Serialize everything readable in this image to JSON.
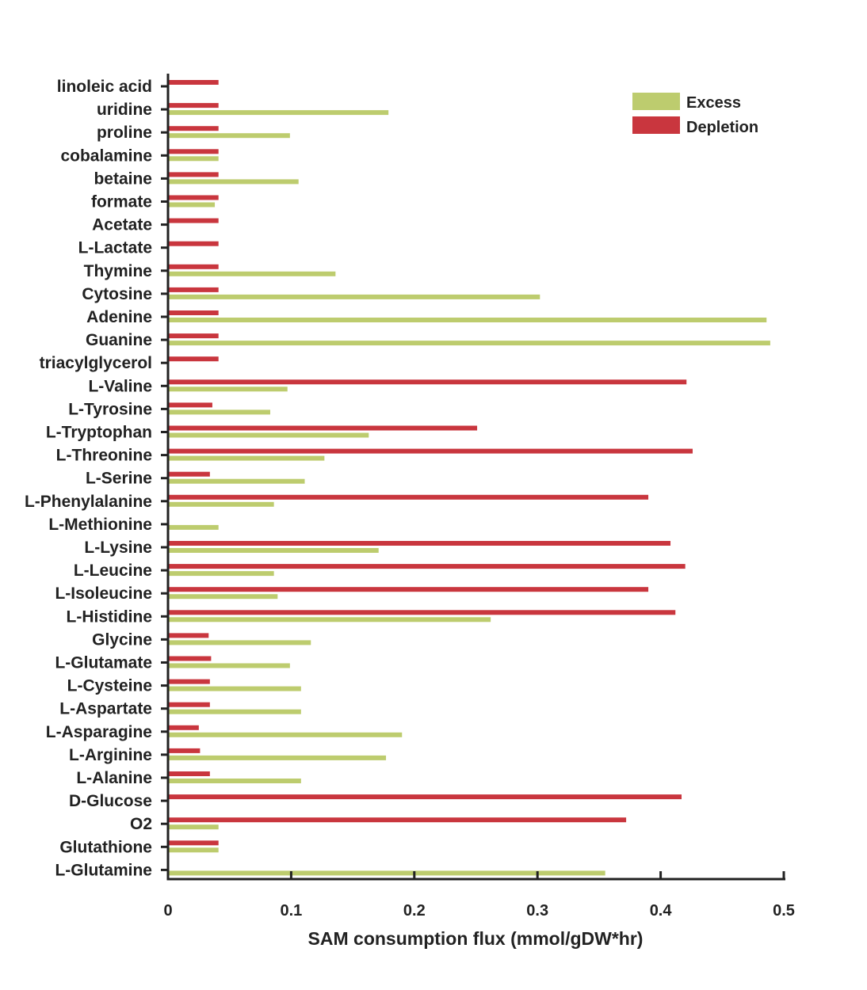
{
  "chart_data": {
    "type": "bar",
    "orientation": "horizontal",
    "title": "",
    "xlabel": "SAM consumption flux (mmol/gDW*hr)",
    "ylabel": "",
    "xlim": [
      0,
      0.5
    ],
    "xticks": [
      "0",
      "0.1",
      "0.2",
      "0.3",
      "0.4",
      "0.5"
    ],
    "xtick_values": [
      0,
      0.1,
      0.2,
      0.3,
      0.4,
      0.5
    ],
    "grid": false,
    "legend_position": "top-right",
    "categories": [
      "linoleic acid",
      "uridine",
      "proline",
      "cobalamine",
      "betaine",
      "formate",
      "Acetate",
      "L-Lactate",
      "Thymine",
      "Cytosine",
      "Adenine",
      "Guanine",
      "triacylglycerol",
      "L-Valine",
      "L-Tyrosine",
      "L-Tryptophan",
      "L-Threonine",
      "L-Serine",
      "L-Phenylalanine",
      "L-Methionine",
      "L-Lysine",
      "L-Leucine",
      "L-Isoleucine",
      "L-Histidine",
      "Glycine",
      "L-Glutamate",
      "L-Cysteine",
      "L-Aspartate",
      "L-Asparagine",
      "L-Arginine",
      "L-Alanine",
      "D-Glucose",
      "O2",
      "Glutathione",
      "L-Glutamine"
    ],
    "series": [
      {
        "name": "Excess",
        "color": "#bdcc6e",
        "values": [
          0,
          0.179,
          0.099,
          0.041,
          0.106,
          0.038,
          0,
          0,
          0.136,
          0.302,
          0.486,
          0.489,
          0,
          0.097,
          0.083,
          0.163,
          0.127,
          0.111,
          0.086,
          0.041,
          0.171,
          0.086,
          0.089,
          0.262,
          0.116,
          0.099,
          0.108,
          0.108,
          0.19,
          0.177,
          0.108,
          0,
          0.041,
          0.041,
          0.355
        ]
      },
      {
        "name": "Depletion",
        "color": "#c9363e",
        "values": [
          0.041,
          0.041,
          0.041,
          0.041,
          0.041,
          0.041,
          0.041,
          0.041,
          0.041,
          0.041,
          0.041,
          0.041,
          0.041,
          0.421,
          0.036,
          0.251,
          0.426,
          0.034,
          0.39,
          0,
          0.408,
          0.42,
          0.39,
          0.412,
          0.033,
          0.035,
          0.034,
          0.034,
          0.025,
          0.026,
          0.034,
          0.417,
          0.372,
          0.041,
          0
        ]
      }
    ]
  }
}
